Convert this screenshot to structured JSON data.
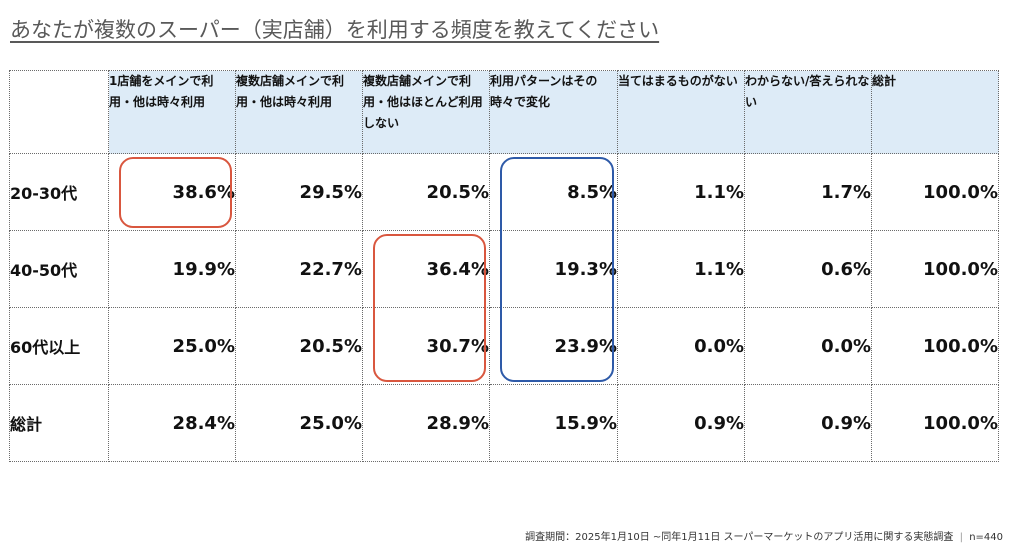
{
  "title": "あなたが複数のスーパー（実店舗）を利用する頻度を教えてください",
  "chart_data": {
    "type": "table",
    "columns": [
      "1店舗をメインで利用・他は時々利用",
      "複数店舗メインで利用・他は時々利用",
      "複数店舗メインで利用・他はほとんど利用しない",
      "利用パターンはその時々で変化",
      "当てはまるものがない",
      "わからない/答えられない",
      "総計"
    ],
    "rows": [
      {
        "label": "20-30代",
        "values": [
          "38.6%",
          "29.5%",
          "20.5%",
          "8.5%",
          "1.1%",
          "1.7%",
          "100.0%"
        ]
      },
      {
        "label": "40-50代",
        "values": [
          "19.9%",
          "22.7%",
          "36.4%",
          "19.3%",
          "1.1%",
          "0.6%",
          "100.0%"
        ]
      },
      {
        "label": "60代以上",
        "values": [
          "25.0%",
          "20.5%",
          "30.7%",
          "23.9%",
          "0.0%",
          "0.0%",
          "100.0%"
        ]
      },
      {
        "label": "総計",
        "values": [
          "28.4%",
          "25.0%",
          "28.9%",
          "15.9%",
          "0.9%",
          "0.9%",
          "100.0%"
        ]
      }
    ],
    "highlights": [
      {
        "color": "#d9573f",
        "rows": [
          0,
          0
        ],
        "col": 0
      },
      {
        "color": "#d9573f",
        "rows": [
          1,
          2
        ],
        "col": 2
      },
      {
        "color": "#2e5aa8",
        "rows": [
          0,
          2
        ],
        "col": 3
      }
    ]
  },
  "footer": {
    "text": "調査期間：2025年1月10日 ~同年1月11日 スーパーマーケットのアプリ活用に関する実態調査",
    "sep": "|",
    "n": "n=440"
  }
}
